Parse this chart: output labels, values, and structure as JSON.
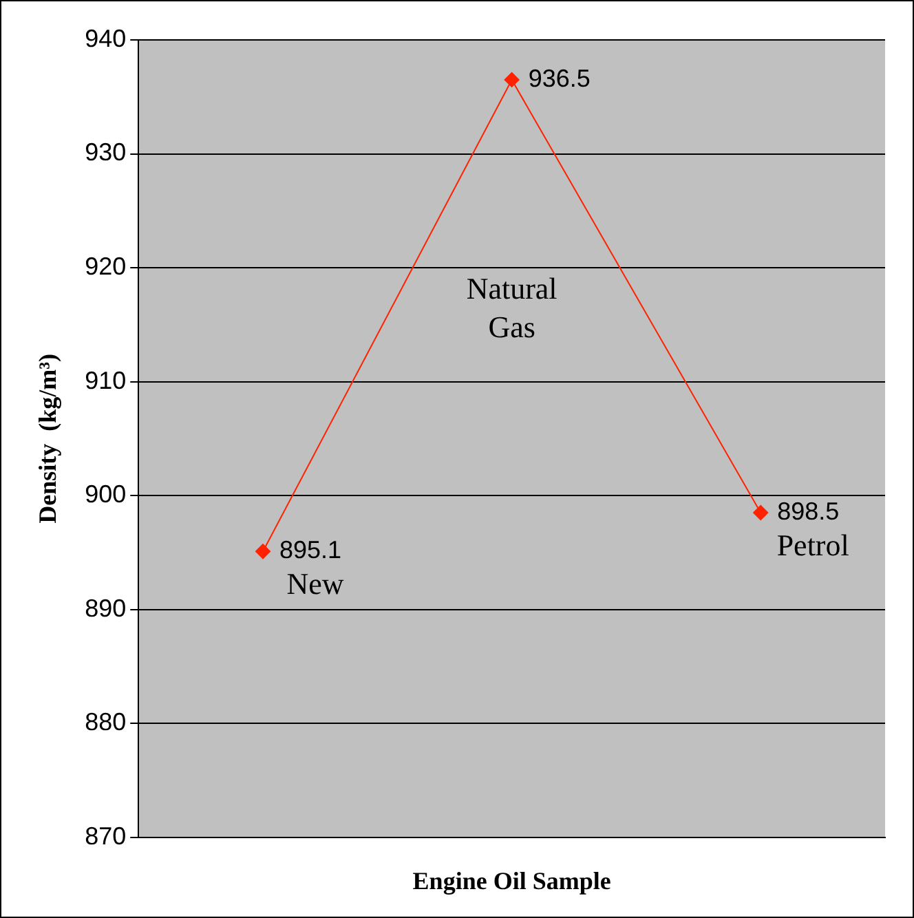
{
  "chart_data": {
    "type": "line",
    "categories": [
      "New",
      "Natural Gas",
      "Petrol"
    ],
    "values": [
      895.1,
      936.5,
      898.5
    ],
    "color": "#ff2200",
    "xlabel": "Engine Oil Sample",
    "ylabel": "Density  (kg/m³)",
    "ylim": [
      870,
      940
    ],
    "yticks": [
      870,
      880,
      890,
      900,
      910,
      920,
      930,
      940
    ],
    "grid": "y",
    "marker": "diamond",
    "data_labels": true,
    "tick_labels": "y"
  }
}
